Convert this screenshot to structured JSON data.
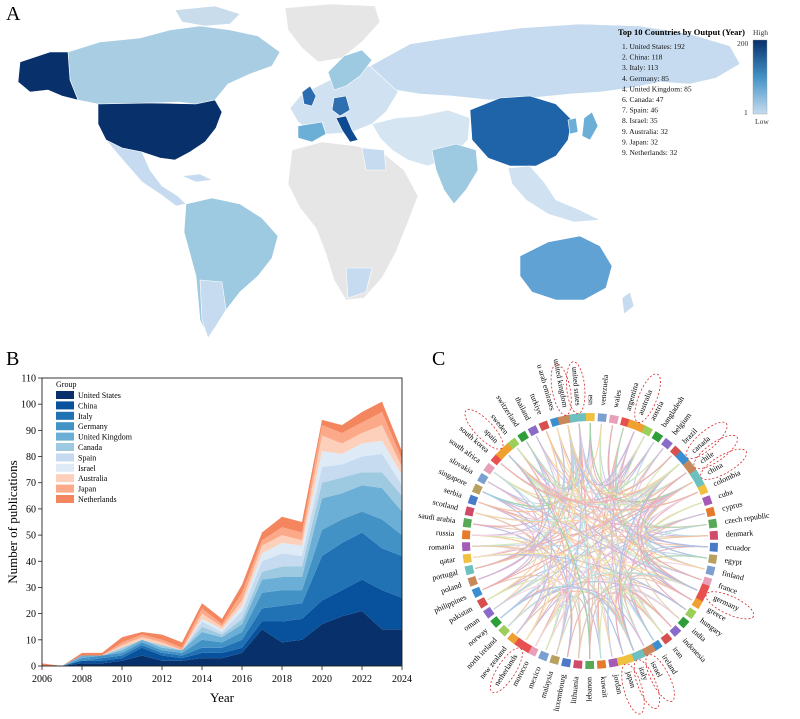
{
  "panels": {
    "a": "A",
    "b": "B",
    "c": "C"
  },
  "map": {
    "top10_title": "Top 10 Countries by Output (Year)",
    "top10": [
      "1. United States: 192",
      "2. China: 118",
      "3. Italy: 113",
      "4. Germany: 85",
      "4. United Kingdom: 85",
      "6. Canada: 47",
      "7. Spain: 46",
      "8. Israel: 35",
      "9. Australia: 32",
      "9. Japan: 32",
      "9. Netherlands: 32"
    ],
    "colorbar": {
      "high": "High",
      "low": "Low",
      "max": "200",
      "min": "1",
      "color_high": "#08306b",
      "color_low": "#c6dbef"
    }
  },
  "chart_data": [
    {
      "type": "area",
      "stacked": true,
      "xlabel": "Year",
      "ylabel": "Number of publications",
      "legend_title": "Group",
      "ylim": [
        0,
        110
      ],
      "xlim": [
        2006,
        2024
      ],
      "yticks": [
        0,
        10,
        20,
        30,
        40,
        50,
        60,
        70,
        80,
        90,
        100,
        110
      ],
      "xticks": [
        2006,
        2008,
        2010,
        2012,
        2014,
        2016,
        2018,
        2020,
        2022,
        2024
      ],
      "x": [
        2006,
        2007,
        2008,
        2009,
        2010,
        2011,
        2012,
        2013,
        2014,
        2015,
        2016,
        2017,
        2018,
        2019,
        2020,
        2021,
        2022,
        2023,
        2024
      ],
      "series": [
        {
          "name": "United States",
          "color": "#08306b",
          "values": [
            0,
            0,
            1,
            1,
            2,
            4,
            2,
            2,
            3,
            3,
            5,
            14,
            9,
            10,
            16,
            19,
            21,
            14,
            14
          ]
        },
        {
          "name": "China",
          "color": "#08519c",
          "values": [
            0,
            0,
            1,
            1,
            1,
            3,
            2,
            1,
            2,
            2,
            2,
            3,
            8,
            8,
            9,
            10,
            12,
            15,
            12
          ]
        },
        {
          "name": "Italy",
          "color": "#2171b5",
          "values": [
            0,
            0,
            0,
            1,
            1,
            1,
            1,
            1,
            2,
            2,
            3,
            5,
            6,
            6,
            17,
            18,
            18,
            16,
            16
          ]
        },
        {
          "name": "Germany",
          "color": "#4292c6",
          "values": [
            0,
            0,
            1,
            1,
            1,
            1,
            1,
            1,
            3,
            2,
            3,
            6,
            6,
            5,
            10,
            9,
            8,
            11,
            8
          ]
        },
        {
          "name": "United Kingdom",
          "color": "#6baed6",
          "values": [
            0,
            0,
            1,
            0,
            1,
            1,
            1,
            1,
            3,
            2,
            3,
            5,
            5,
            5,
            12,
            10,
            10,
            12,
            9
          ]
        },
        {
          "name": "Canada",
          "color": "#9ecae1",
          "values": [
            0,
            0,
            0,
            0,
            1,
            0,
            1,
            0,
            2,
            1,
            2,
            3,
            4,
            4,
            6,
            6,
            5,
            6,
            6
          ]
        },
        {
          "name": "Spain",
          "color": "#c6dbef",
          "values": [
            0,
            0,
            0,
            0,
            0,
            0,
            0,
            0,
            2,
            1,
            3,
            4,
            5,
            4,
            6,
            5,
            6,
            7,
            4
          ]
        },
        {
          "name": "Israel",
          "color": "#deebf7",
          "values": [
            0,
            0,
            0,
            0,
            0,
            0,
            0,
            0,
            1,
            1,
            2,
            3,
            4,
            4,
            6,
            4,
            5,
            5,
            4
          ]
        },
        {
          "name": "Australia",
          "color": "#fdd0bb",
          "values": [
            0,
            0,
            0,
            0,
            1,
            1,
            1,
            0,
            2,
            1,
            2,
            3,
            3,
            2,
            6,
            4,
            4,
            6,
            3
          ]
        },
        {
          "name": "Japan",
          "color": "#fca98a",
          "values": [
            0,
            0,
            0,
            0,
            1,
            1,
            1,
            1,
            2,
            1,
            3,
            2,
            3,
            3,
            4,
            4,
            4,
            5,
            3
          ]
        },
        {
          "name": "Netherlands",
          "color": "#f4865f",
          "values": [
            1,
            0,
            1,
            1,
            2,
            1,
            2,
            2,
            2,
            2,
            3,
            3,
            4,
            4,
            2,
            3,
            4,
            4,
            3
          ]
        }
      ]
    },
    {
      "type": "chord",
      "countries": [
        "venezuela",
        "wales",
        "argentina",
        "australia",
        "austria",
        "bangladesh",
        "belgium",
        "brazil",
        "canada",
        "chile",
        "china",
        "colombia",
        "cuba",
        "cyprus",
        "czech republic",
        "denmark",
        "ecuador",
        "egypt",
        "finland",
        "france",
        "germany",
        "greece",
        "hungary",
        "india",
        "indonesia",
        "iran",
        "ireland",
        "israel",
        "italy",
        "japan",
        "jordan",
        "kuwait",
        "lebanon",
        "lithuania",
        "luxembourg",
        "malaysia",
        "mexico",
        "morocco",
        "netherlands",
        "new zealand",
        "north ireland",
        "norway",
        "oman",
        "pakistan",
        "philippines",
        "poland",
        "portugal",
        "qatar",
        "romania",
        "russia",
        "saudi arabia",
        "scotland",
        "serbia",
        "singapore",
        "slovakia",
        "south africa",
        "south korea",
        "spain",
        "sweden",
        "switzerland",
        "thailand",
        "turkiye",
        "u arab emirates",
        "united kingdom",
        "united states",
        "usa"
      ],
      "highlighted": [
        "united states",
        "australia",
        "canada",
        "chile",
        "china",
        "germany",
        "israel",
        "italy",
        "japan",
        "netherlands",
        "spain",
        "united kingdom"
      ]
    }
  ]
}
